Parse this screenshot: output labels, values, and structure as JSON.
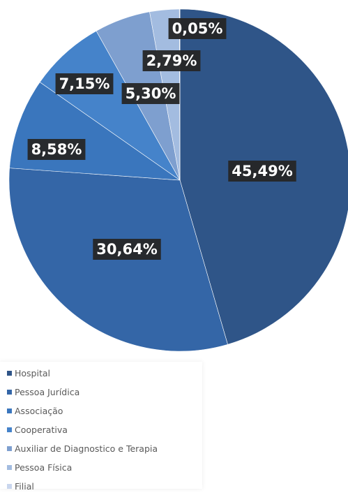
{
  "chart_data": {
    "type": "pie",
    "title": "",
    "categories": [
      "Hospital",
      "Pessoa Jurídica",
      "Associação",
      "Cooperativa",
      "Auxiliar de Diagnostico e Terapia",
      "Pessoa Física",
      "Filial"
    ],
    "values": [
      45.49,
      30.64,
      8.58,
      7.15,
      5.3,
      2.79,
      0.05
    ],
    "data_labels": [
      "45,49%",
      "30,64%",
      "8,58%",
      "7,15%",
      "5,30%",
      "2,79%",
      "0,05%"
    ],
    "colors": [
      "#2F5588",
      "#3466A7",
      "#3A76BD",
      "#4583CA",
      "#7E9FCF",
      "#A3BCE0",
      "#C9D6EE"
    ],
    "legend_position": "bottom-left",
    "start_angle_deg": 0,
    "direction": "clockwise"
  }
}
